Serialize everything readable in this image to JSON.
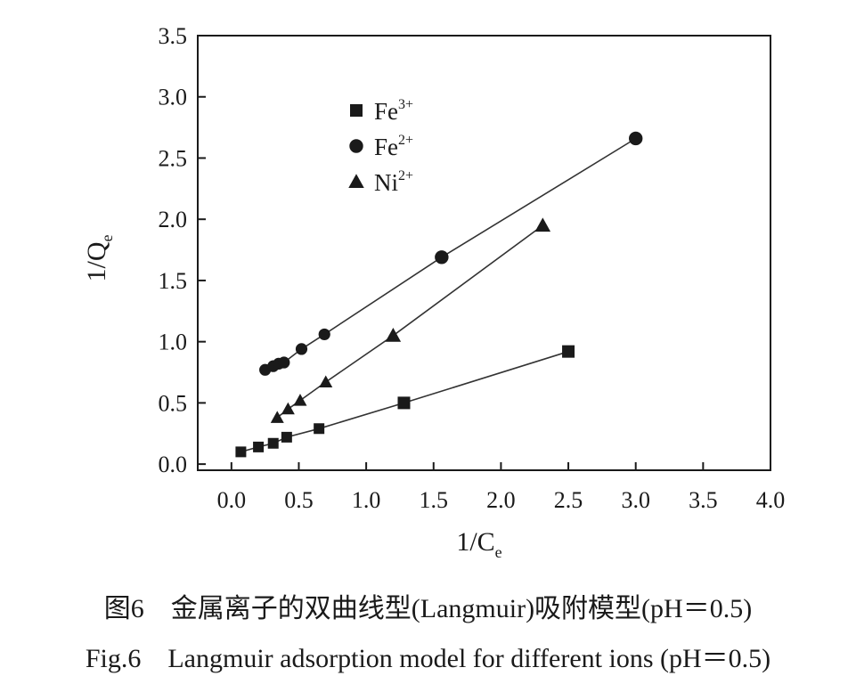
{
  "chart_data": {
    "type": "scatter",
    "xlabel": {
      "main": "1/C",
      "sub": "e"
    },
    "ylabel": {
      "main": "1/Q",
      "sub": "e"
    },
    "xlim": [
      -0.25,
      4.0
    ],
    "ylim": [
      -0.05,
      3.5
    ],
    "x_ticks": [
      "0.0",
      "0.5",
      "1.0",
      "1.5",
      "2.0",
      "2.5",
      "3.0",
      "3.5",
      "4.0"
    ],
    "y_ticks": [
      "0.0",
      "0.5",
      "1.0",
      "1.5",
      "2.0",
      "2.5",
      "3.0",
      "3.5"
    ],
    "legend_position": "top-left",
    "series": [
      {
        "name": {
          "main": "Fe",
          "sup": "3+"
        },
        "marker": "square",
        "points": [
          [
            0.07,
            0.1
          ],
          [
            0.2,
            0.14
          ],
          [
            0.31,
            0.17
          ],
          [
            0.41,
            0.22
          ],
          [
            0.65,
            0.29
          ],
          [
            1.28,
            0.5
          ],
          [
            2.5,
            0.92
          ]
        ],
        "fit": [
          [
            0.07,
            0.1
          ],
          [
            2.5,
            0.92
          ]
        ]
      },
      {
        "name": {
          "main": "Fe",
          "sup": "2+"
        },
        "marker": "circle",
        "points": [
          [
            0.25,
            0.77
          ],
          [
            0.31,
            0.8
          ],
          [
            0.35,
            0.82
          ],
          [
            0.39,
            0.83
          ],
          [
            0.52,
            0.94
          ],
          [
            0.69,
            1.06
          ],
          [
            1.56,
            1.69
          ],
          [
            3.0,
            2.66
          ]
        ],
        "fit": [
          [
            0.25,
            0.77
          ],
          [
            3.0,
            2.66
          ]
        ]
      },
      {
        "name": {
          "main": "Ni",
          "sup": "2+"
        },
        "marker": "triangle",
        "points": [
          [
            0.34,
            0.38
          ],
          [
            0.42,
            0.45
          ],
          [
            0.51,
            0.52
          ],
          [
            0.7,
            0.67
          ],
          [
            1.2,
            1.05
          ],
          [
            2.31,
            1.95
          ]
        ],
        "fit": [
          [
            0.34,
            0.38
          ],
          [
            2.31,
            1.95
          ]
        ]
      }
    ]
  },
  "caption": {
    "cn": "图6　金属离子的双曲线型(Langmuir)吸附模型(pH＝0.5)",
    "en": "Fig.6　Langmuir adsorption model for different ions (pH＝0.5)"
  }
}
